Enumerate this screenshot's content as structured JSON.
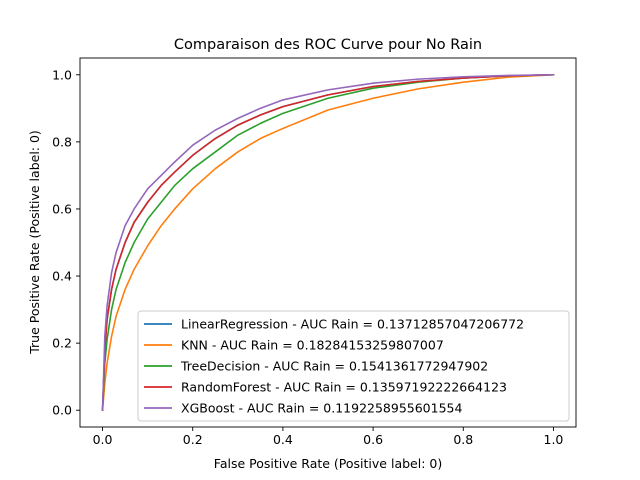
{
  "chart_data": {
    "type": "line",
    "title": "Comparaison des ROC Curve pour No Rain",
    "xlabel": "False Positive Rate (Positive label: 0)",
    "ylabel": "True Positive Rate (Positive label: 0)",
    "xlim": [
      -0.05,
      1.05
    ],
    "ylim": [
      -0.05,
      1.05
    ],
    "xticks": [
      "0.0",
      "0.2",
      "0.4",
      "0.6",
      "0.8",
      "1.0"
    ],
    "yticks": [
      "0.0",
      "0.2",
      "0.4",
      "0.6",
      "0.8",
      "1.0"
    ],
    "grid": false,
    "legend_position": "lower-right",
    "series": [
      {
        "name": "LinearRegression - AUC Rain = 0.13712857047206772",
        "color": "#1f77b4",
        "x": [
          0,
          0.005,
          0.01,
          0.02,
          0.03,
          0.05,
          0.07,
          0.1,
          0.13,
          0.16,
          0.2,
          0.25,
          0.3,
          0.35,
          0.4,
          0.5,
          0.6,
          0.7,
          0.8,
          0.9,
          1.0
        ],
        "y": [
          0,
          0.18,
          0.27,
          0.36,
          0.42,
          0.5,
          0.56,
          0.62,
          0.67,
          0.71,
          0.76,
          0.81,
          0.85,
          0.88,
          0.905,
          0.94,
          0.965,
          0.98,
          0.99,
          0.997,
          1.0
        ]
      },
      {
        "name": "KNN - AUC Rain = 0.18284153259807007",
        "color": "#ff7f0e",
        "x": [
          0,
          0.005,
          0.01,
          0.02,
          0.03,
          0.05,
          0.07,
          0.1,
          0.13,
          0.16,
          0.2,
          0.25,
          0.3,
          0.35,
          0.4,
          0.5,
          0.6,
          0.7,
          0.8,
          0.9,
          1.0
        ],
        "y": [
          0,
          0.08,
          0.14,
          0.22,
          0.28,
          0.36,
          0.42,
          0.49,
          0.55,
          0.6,
          0.66,
          0.72,
          0.77,
          0.81,
          0.84,
          0.895,
          0.93,
          0.958,
          0.978,
          0.993,
          1.0
        ]
      },
      {
        "name": "TreeDecision - AUC Rain = 0.1541361772947902",
        "color": "#2ca02c",
        "x": [
          0,
          0.005,
          0.01,
          0.02,
          0.03,
          0.05,
          0.07,
          0.1,
          0.13,
          0.16,
          0.2,
          0.25,
          0.3,
          0.35,
          0.4,
          0.5,
          0.6,
          0.7,
          0.8,
          0.9,
          1.0
        ],
        "y": [
          0,
          0.14,
          0.21,
          0.3,
          0.36,
          0.44,
          0.5,
          0.57,
          0.62,
          0.67,
          0.72,
          0.77,
          0.82,
          0.855,
          0.885,
          0.93,
          0.96,
          0.978,
          0.99,
          0.997,
          1.0
        ]
      },
      {
        "name": "RandomForest - AUC Rain = 0.13597192222664123",
        "color": "#d62728",
        "x": [
          0,
          0.005,
          0.01,
          0.02,
          0.03,
          0.05,
          0.07,
          0.1,
          0.13,
          0.16,
          0.2,
          0.25,
          0.3,
          0.35,
          0.4,
          0.5,
          0.6,
          0.7,
          0.8,
          0.9,
          1.0
        ],
        "y": [
          0,
          0.18,
          0.27,
          0.36,
          0.42,
          0.5,
          0.56,
          0.62,
          0.67,
          0.71,
          0.76,
          0.81,
          0.85,
          0.88,
          0.905,
          0.94,
          0.965,
          0.98,
          0.99,
          0.997,
          1.0
        ]
      },
      {
        "name": "XGBoost - AUC Rain = 0.1192258955601554",
        "color": "#9467bd",
        "x": [
          0,
          0.005,
          0.01,
          0.02,
          0.03,
          0.05,
          0.07,
          0.1,
          0.13,
          0.16,
          0.2,
          0.25,
          0.3,
          0.35,
          0.4,
          0.5,
          0.6,
          0.7,
          0.8,
          0.9,
          1.0
        ],
        "y": [
          0,
          0.22,
          0.31,
          0.41,
          0.47,
          0.55,
          0.6,
          0.66,
          0.7,
          0.74,
          0.79,
          0.835,
          0.87,
          0.9,
          0.925,
          0.955,
          0.975,
          0.987,
          0.994,
          0.998,
          1.0
        ]
      }
    ]
  }
}
